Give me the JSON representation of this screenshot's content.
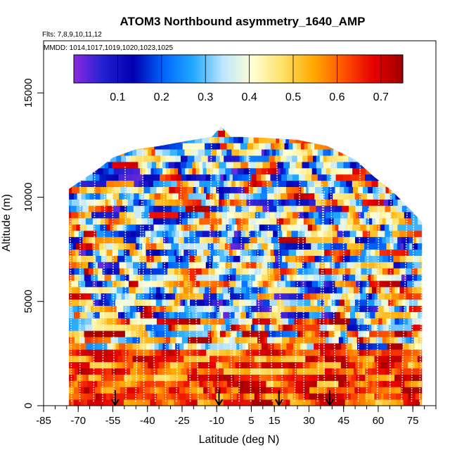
{
  "chart_data": {
    "type": "heatmap",
    "title": "ATOM3 Northbound asymmetry_1640_AMP",
    "flights_text": "Flts: 7,8,9,10,11,12",
    "dates_text": "MMDD: 1014,1017,1019,1020,1023,1025",
    "xlabel": "Latitude (deg N)",
    "ylabel": "Altitude (m)",
    "xlim": [
      -85,
      85
    ],
    "ylim": [
      0,
      17500
    ],
    "x_ticks": [
      -85,
      -70,
      -55,
      -40,
      -25,
      -10,
      5,
      15,
      30,
      45,
      60,
      75
    ],
    "x_tick_labels": [
      "-85",
      "-70",
      "-55",
      "-40",
      "-25",
      "-10",
      "5",
      "15",
      "30",
      "45",
      "60",
      "75"
    ],
    "y_ticks": [
      0,
      5000,
      10000,
      15000
    ],
    "y_tick_labels": [
      "0",
      "5000",
      "10000",
      "15000"
    ],
    "colorbar": {
      "min": 0.0,
      "max": 0.75,
      "ticks": [
        0.1,
        0.2,
        0.3,
        0.4,
        0.5,
        0.6,
        0.7
      ],
      "tick_labels": [
        "0.1",
        "0.2",
        "0.3",
        "0.4",
        "0.5",
        "0.6",
        "0.7"
      ],
      "colors": [
        "#8a2be2",
        "#2020d0",
        "#0000b0",
        "#0066ff",
        "#22aaff",
        "#bfe6ff",
        "#ffffd0",
        "#ffe066",
        "#ffaa00",
        "#ff5500",
        "#e60000",
        "#a00000"
      ]
    },
    "field_summary": "Altitude-latitude curtain of asymmetry_1640_AMP from ATom-3 northbound profiles; values mostly 0.5-0.75 (red/orange) below ~3000 m, mixed 0.05-0.75 (blue to red bands) between 3000 and 13000 m.",
    "coverage_top": [
      {
        "lat": -74,
        "alt": 10400
      },
      {
        "lat": -62,
        "alt": 11300
      },
      {
        "lat": -55,
        "alt": 11900
      },
      {
        "lat": -45,
        "alt": 12300
      },
      {
        "lat": -35,
        "alt": 12450
      },
      {
        "lat": -25,
        "alt": 12650
      },
      {
        "lat": -12,
        "alt": 12900
      },
      {
        "lat": -8,
        "alt": 13400
      },
      {
        "lat": -4,
        "alt": 12900
      },
      {
        "lat": 10,
        "alt": 12850
      },
      {
        "lat": 25,
        "alt": 12750
      },
      {
        "lat": 38,
        "alt": 12450
      },
      {
        "lat": 50,
        "alt": 11800
      },
      {
        "lat": 58,
        "alt": 11000
      },
      {
        "lat": 66,
        "alt": 10300
      },
      {
        "lat": 74,
        "alt": 9400
      },
      {
        "lat": 79,
        "alt": 8800
      }
    ],
    "profile_markers_lat": [
      -54,
      -9,
      17,
      39
    ]
  }
}
